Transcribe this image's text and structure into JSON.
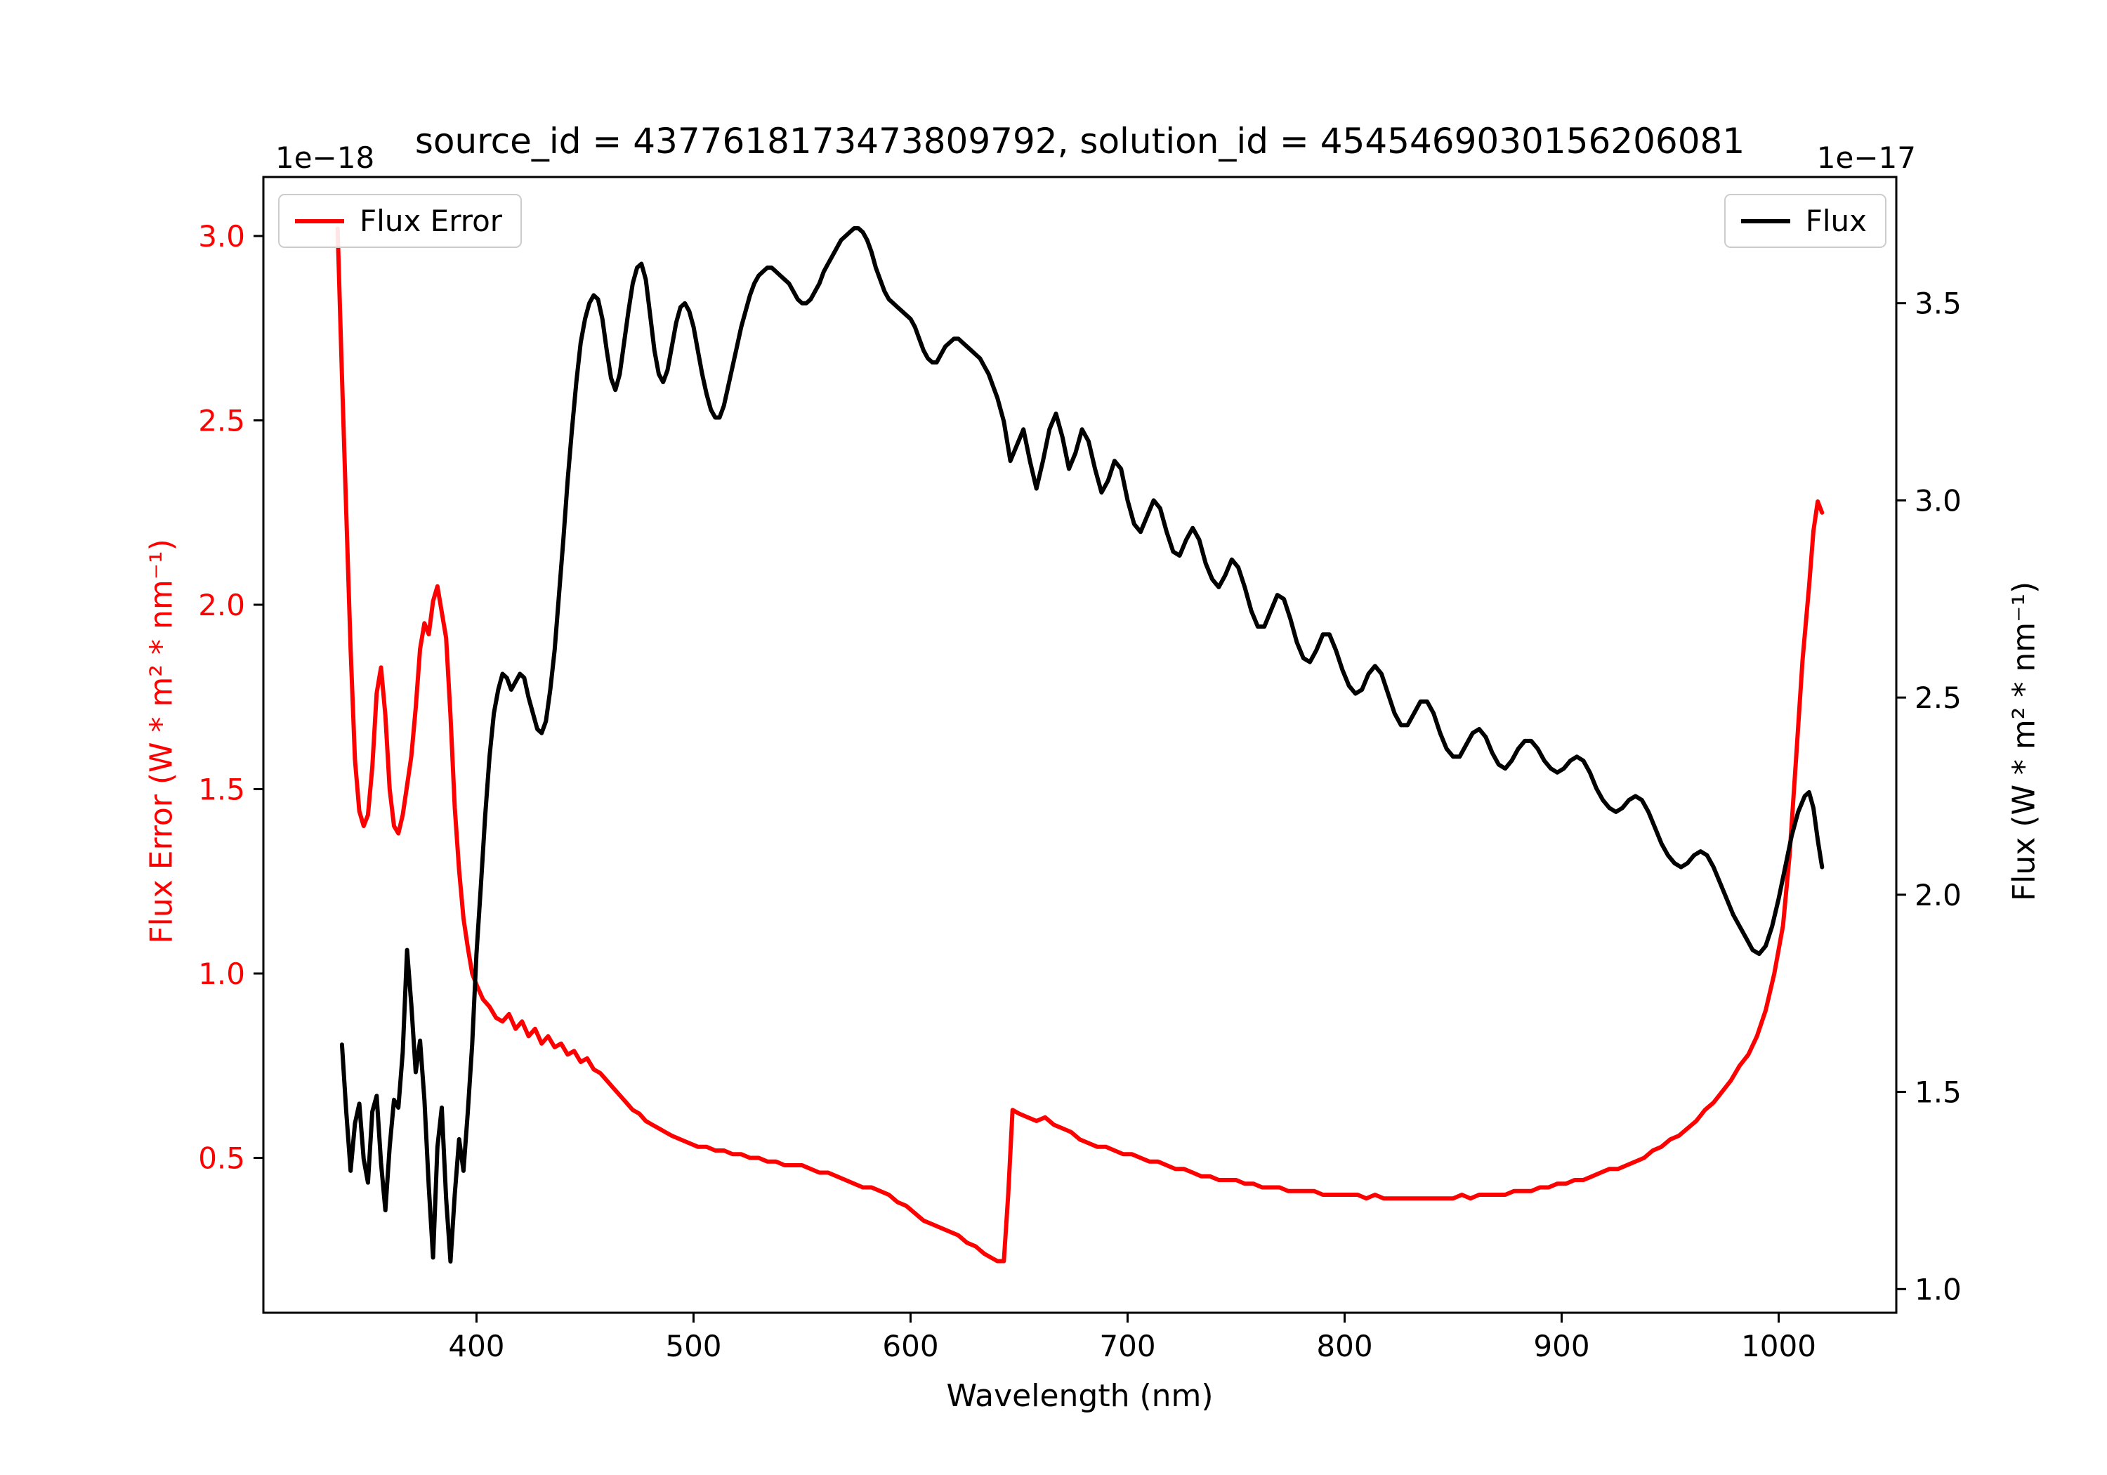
{
  "figure": {
    "title": "source_id = 4377618173473809792, solution_id = 4545469030156206081",
    "xlabel": "Wavelength (nm)",
    "left_ylabel": "Flux Error (W * m² * nm⁻¹)",
    "right_ylabel": "Flux (W * m² * nm⁻¹)",
    "left_offset_label": "1e−18",
    "right_offset_label": "1e−17",
    "legend_left_label": "Flux Error",
    "legend_right_label": "Flux",
    "background_color": "#ffffff",
    "spine_color": "#000000"
  },
  "chart_data": {
    "type": "line",
    "title": "source_id = 4377618173473809792, solution_id = 4545469030156206081",
    "xlabel": "Wavelength (nm)",
    "xlim": [
      301.8,
      1054.2
    ],
    "x_ticks": [
      400,
      500,
      600,
      700,
      800,
      900,
      1000
    ],
    "grid": false,
    "left_axis": {
      "label": "Flux Error (W * m² * nm⁻¹)",
      "offset": "1e−18",
      "ticks": [
        0.5,
        1.0,
        1.5,
        2.0,
        2.5,
        3.0
      ],
      "ylim": [
        0.08,
        3.16
      ],
      "label_color": "#ff0000"
    },
    "right_axis": {
      "label": "Flux (W * m² * nm⁻¹)",
      "offset": "1e−17",
      "ticks": [
        1.0,
        1.5,
        2.0,
        2.5,
        3.0,
        3.5
      ],
      "ylim": [
        0.94,
        3.82
      ],
      "label_color": "#000000"
    },
    "series": [
      {
        "name": "Flux Error",
        "axis": "left",
        "color": "#ff0000",
        "legend_position": "upper left",
        "x": [
          336,
          338,
          340,
          342,
          344,
          346,
          348,
          350,
          352,
          354,
          356,
          358,
          360,
          362,
          364,
          366,
          368,
          370,
          372,
          374,
          376,
          378,
          380,
          382,
          384,
          386,
          388,
          390,
          392,
          394,
          396,
          398,
          400,
          403,
          406,
          409,
          412,
          415,
          418,
          421,
          424,
          427,
          430,
          433,
          436,
          439,
          442,
          445,
          448,
          451,
          454,
          457,
          460,
          463,
          466,
          469,
          472,
          475,
          478,
          481,
          484,
          487,
          490,
          494,
          498,
          502,
          506,
          510,
          514,
          518,
          522,
          526,
          530,
          534,
          538,
          542,
          546,
          550,
          554,
          558,
          562,
          566,
          570,
          574,
          578,
          582,
          586,
          590,
          594,
          598,
          602,
          606,
          610,
          614,
          618,
          622,
          626,
          630,
          634,
          637,
          640,
          643,
          645,
          647,
          650,
          654,
          658,
          662,
          666,
          670,
          674,
          678,
          682,
          686,
          690,
          694,
          698,
          702,
          706,
          710,
          714,
          718,
          722,
          726,
          730,
          734,
          738,
          742,
          746,
          750,
          754,
          758,
          762,
          766,
          770,
          774,
          778,
          782,
          786,
          790,
          794,
          798,
          802,
          806,
          810,
          814,
          818,
          822,
          826,
          830,
          834,
          838,
          842,
          846,
          850,
          854,
          858,
          862,
          866,
          870,
          874,
          878,
          882,
          886,
          890,
          894,
          898,
          902,
          906,
          910,
          914,
          918,
          922,
          926,
          930,
          934,
          938,
          942,
          946,
          950,
          954,
          958,
          962,
          966,
          970,
          974,
          978,
          982,
          986,
          990,
          994,
          998,
          1002,
          1005,
          1008,
          1011,
          1014,
          1016,
          1018,
          1020
        ],
        "y": [
          3.02,
          2.62,
          2.25,
          1.88,
          1.58,
          1.44,
          1.4,
          1.43,
          1.56,
          1.76,
          1.83,
          1.7,
          1.5,
          1.4,
          1.38,
          1.43,
          1.51,
          1.59,
          1.72,
          1.88,
          1.95,
          1.92,
          2.01,
          2.05,
          1.98,
          1.91,
          1.7,
          1.45,
          1.28,
          1.15,
          1.07,
          1.0,
          0.97,
          0.93,
          0.91,
          0.88,
          0.87,
          0.89,
          0.85,
          0.87,
          0.83,
          0.85,
          0.81,
          0.83,
          0.8,
          0.81,
          0.78,
          0.79,
          0.76,
          0.77,
          0.74,
          0.73,
          0.71,
          0.69,
          0.67,
          0.65,
          0.63,
          0.62,
          0.6,
          0.59,
          0.58,
          0.57,
          0.56,
          0.55,
          0.54,
          0.53,
          0.53,
          0.52,
          0.52,
          0.51,
          0.51,
          0.5,
          0.5,
          0.49,
          0.49,
          0.48,
          0.48,
          0.48,
          0.47,
          0.46,
          0.46,
          0.45,
          0.44,
          0.43,
          0.42,
          0.42,
          0.41,
          0.4,
          0.38,
          0.37,
          0.35,
          0.33,
          0.32,
          0.31,
          0.3,
          0.29,
          0.27,
          0.26,
          0.24,
          0.23,
          0.22,
          0.22,
          0.4,
          0.63,
          0.62,
          0.61,
          0.6,
          0.61,
          0.59,
          0.58,
          0.57,
          0.55,
          0.54,
          0.53,
          0.53,
          0.52,
          0.51,
          0.51,
          0.5,
          0.49,
          0.49,
          0.48,
          0.47,
          0.47,
          0.46,
          0.45,
          0.45,
          0.44,
          0.44,
          0.44,
          0.43,
          0.43,
          0.42,
          0.42,
          0.42,
          0.41,
          0.41,
          0.41,
          0.41,
          0.4,
          0.4,
          0.4,
          0.4,
          0.4,
          0.39,
          0.4,
          0.39,
          0.39,
          0.39,
          0.39,
          0.39,
          0.39,
          0.39,
          0.39,
          0.39,
          0.4,
          0.39,
          0.4,
          0.4,
          0.4,
          0.4,
          0.41,
          0.41,
          0.41,
          0.42,
          0.42,
          0.43,
          0.43,
          0.44,
          0.44,
          0.45,
          0.46,
          0.47,
          0.47,
          0.48,
          0.49,
          0.5,
          0.52,
          0.53,
          0.55,
          0.56,
          0.58,
          0.6,
          0.63,
          0.65,
          0.68,
          0.71,
          0.75,
          0.78,
          0.83,
          0.9,
          1.0,
          1.13,
          1.32,
          1.58,
          1.85,
          2.05,
          2.2,
          2.28,
          2.25
        ]
      },
      {
        "name": "Flux",
        "axis": "right",
        "color": "#000000",
        "legend_position": "upper right",
        "x": [
          338,
          340,
          342,
          344,
          346,
          348,
          350,
          352,
          354,
          356,
          358,
          360,
          362,
          364,
          366,
          368,
          370,
          372,
          374,
          376,
          378,
          380,
          382,
          384,
          386,
          388,
          390,
          392,
          394,
          396,
          398,
          400,
          402,
          404,
          406,
          408,
          410,
          412,
          414,
          416,
          418,
          420,
          422,
          424,
          426,
          428,
          430,
          432,
          434,
          436,
          438,
          440,
          442,
          444,
          446,
          448,
          450,
          452,
          454,
          456,
          458,
          460,
          462,
          464,
          466,
          468,
          470,
          472,
          474,
          476,
          478,
          480,
          482,
          484,
          486,
          488,
          490,
          492,
          494,
          496,
          498,
          500,
          502,
          504,
          506,
          508,
          510,
          512,
          514,
          516,
          518,
          520,
          522,
          524,
          526,
          528,
          530,
          532,
          534,
          536,
          538,
          540,
          542,
          544,
          546,
          548,
          550,
          552,
          554,
          556,
          558,
          560,
          562,
          564,
          566,
          568,
          570,
          572,
          574,
          576,
          578,
          580,
          582,
          584,
          586,
          588,
          590,
          592,
          594,
          596,
          598,
          600,
          602,
          604,
          606,
          608,
          610,
          612,
          614,
          616,
          618,
          620,
          622,
          624,
          626,
          628,
          630,
          632,
          634,
          636,
          638,
          640,
          643,
          646,
          649,
          652,
          655,
          658,
          661,
          664,
          667,
          670,
          673,
          676,
          679,
          682,
          685,
          688,
          691,
          694,
          697,
          700,
          703,
          706,
          709,
          712,
          715,
          718,
          721,
          724,
          727,
          730,
          733,
          736,
          739,
          742,
          745,
          748,
          751,
          754,
          757,
          760,
          763,
          766,
          769,
          772,
          775,
          778,
          781,
          784,
          787,
          790,
          793,
          796,
          799,
          802,
          805,
          808,
          811,
          814,
          817,
          820,
          823,
          826,
          829,
          832,
          835,
          838,
          841,
          844,
          847,
          850,
          853,
          856,
          859,
          862,
          865,
          868,
          871,
          874,
          877,
          880,
          883,
          886,
          889,
          892,
          895,
          898,
          901,
          904,
          907,
          910,
          913,
          916,
          919,
          922,
          925,
          928,
          931,
          934,
          937,
          940,
          943,
          946,
          949,
          952,
          955,
          958,
          961,
          964,
          967,
          970,
          973,
          976,
          979,
          982,
          985,
          988,
          991,
          994,
          997,
          1000,
          1003,
          1006,
          1009,
          1012,
          1014,
          1016,
          1018,
          1020
        ],
        "y": [
          1.62,
          1.45,
          1.3,
          1.42,
          1.47,
          1.33,
          1.27,
          1.45,
          1.49,
          1.32,
          1.2,
          1.36,
          1.48,
          1.46,
          1.6,
          1.86,
          1.72,
          1.55,
          1.63,
          1.48,
          1.26,
          1.08,
          1.36,
          1.46,
          1.23,
          1.07,
          1.24,
          1.38,
          1.3,
          1.45,
          1.62,
          1.85,
          2.02,
          2.2,
          2.35,
          2.46,
          2.52,
          2.56,
          2.55,
          2.52,
          2.54,
          2.56,
          2.55,
          2.5,
          2.46,
          2.42,
          2.41,
          2.44,
          2.52,
          2.62,
          2.76,
          2.9,
          3.05,
          3.18,
          3.3,
          3.4,
          3.46,
          3.5,
          3.52,
          3.51,
          3.46,
          3.38,
          3.31,
          3.28,
          3.32,
          3.4,
          3.48,
          3.55,
          3.59,
          3.6,
          3.56,
          3.47,
          3.38,
          3.32,
          3.3,
          3.33,
          3.39,
          3.45,
          3.49,
          3.5,
          3.48,
          3.44,
          3.38,
          3.32,
          3.27,
          3.23,
          3.21,
          3.21,
          3.24,
          3.29,
          3.34,
          3.39,
          3.44,
          3.48,
          3.52,
          3.55,
          3.57,
          3.58,
          3.59,
          3.59,
          3.58,
          3.57,
          3.56,
          3.55,
          3.53,
          3.51,
          3.5,
          3.5,
          3.51,
          3.53,
          3.55,
          3.58,
          3.6,
          3.62,
          3.64,
          3.66,
          3.67,
          3.68,
          3.69,
          3.69,
          3.68,
          3.66,
          3.63,
          3.59,
          3.56,
          3.53,
          3.51,
          3.5,
          3.49,
          3.48,
          3.47,
          3.46,
          3.44,
          3.41,
          3.38,
          3.36,
          3.35,
          3.35,
          3.37,
          3.39,
          3.4,
          3.41,
          3.41,
          3.4,
          3.39,
          3.38,
          3.37,
          3.36,
          3.34,
          3.32,
          3.29,
          3.26,
          3.2,
          3.1,
          3.14,
          3.18,
          3.1,
          3.03,
          3.1,
          3.18,
          3.22,
          3.16,
          3.08,
          3.12,
          3.18,
          3.15,
          3.08,
          3.02,
          3.05,
          3.1,
          3.08,
          3.0,
          2.94,
          2.92,
          2.96,
          3.0,
          2.98,
          2.92,
          2.87,
          2.86,
          2.9,
          2.93,
          2.9,
          2.84,
          2.8,
          2.78,
          2.81,
          2.85,
          2.83,
          2.78,
          2.72,
          2.68,
          2.68,
          2.72,
          2.76,
          2.75,
          2.7,
          2.64,
          2.6,
          2.59,
          2.62,
          2.66,
          2.66,
          2.62,
          2.57,
          2.53,
          2.51,
          2.52,
          2.56,
          2.58,
          2.56,
          2.51,
          2.46,
          2.43,
          2.43,
          2.46,
          2.49,
          2.49,
          2.46,
          2.41,
          2.37,
          2.35,
          2.35,
          2.38,
          2.41,
          2.42,
          2.4,
          2.36,
          2.33,
          2.32,
          2.34,
          2.37,
          2.39,
          2.39,
          2.37,
          2.34,
          2.32,
          2.31,
          2.32,
          2.34,
          2.35,
          2.34,
          2.31,
          2.27,
          2.24,
          2.22,
          2.21,
          2.22,
          2.24,
          2.25,
          2.24,
          2.21,
          2.17,
          2.13,
          2.1,
          2.08,
          2.07,
          2.08,
          2.1,
          2.11,
          2.1,
          2.07,
          2.03,
          1.99,
          1.95,
          1.92,
          1.89,
          1.86,
          1.85,
          1.87,
          1.92,
          1.99,
          2.07,
          2.15,
          2.21,
          2.25,
          2.26,
          2.22,
          2.14,
          2.07
        ]
      }
    ]
  }
}
